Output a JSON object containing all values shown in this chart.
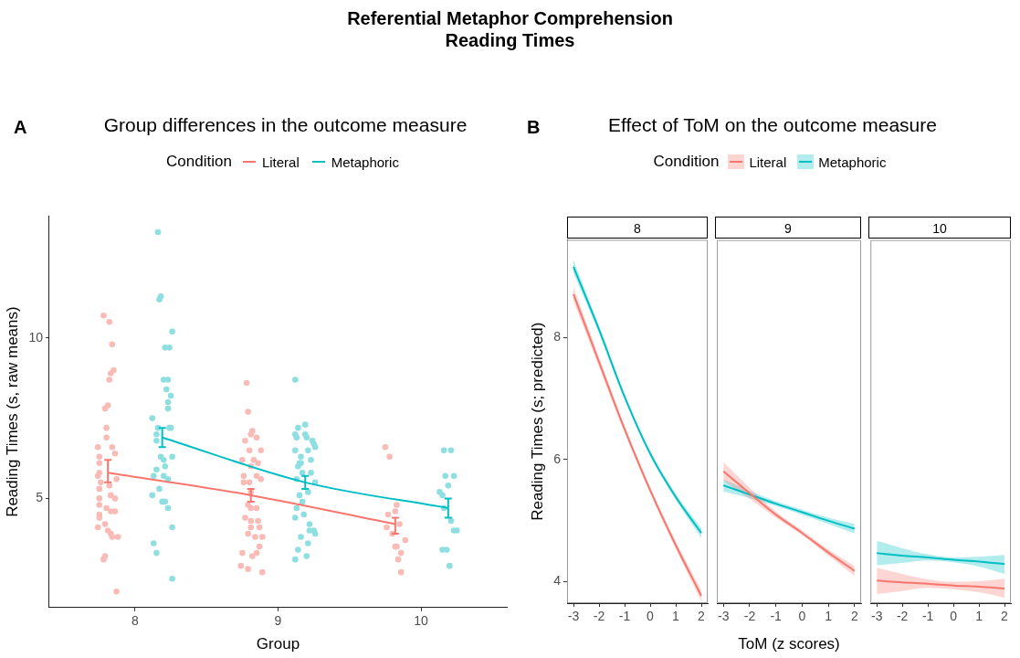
{
  "chart_data": [
    {
      "type": "other",
      "title": "Referential Metaphor Comprehension\nReading Times"
    },
    {
      "type": "scatter",
      "title": "Group differences in the outcome measure",
      "annotations": [
        "A"
      ],
      "xlabel": "Group",
      "ylabel": "Reading Times (s, raw means)",
      "legend_title": "Condition",
      "legend": "top",
      "grid": false,
      "marker": "circle",
      "xlim": [
        7.4,
        10.6
      ],
      "xticks": [
        8,
        9,
        10
      ],
      "ylim": [
        1.6,
        13.8
      ],
      "yticks": [
        5,
        10
      ],
      "series": [
        {
          "type": "scatter",
          "color": "#f9bbb6",
          "x": [
            7.78,
            7.82,
            7.84,
            7.85,
            7.83,
            7.82,
            7.81,
            7.79,
            7.8,
            7.8,
            7.74,
            7.84,
            7.86,
            7.75,
            7.75,
            7.75,
            7.74,
            7.87,
            7.76,
            7.82,
            7.75,
            7.83,
            7.75,
            7.86,
            7.75,
            7.8,
            7.86,
            7.83,
            7.75,
            7.75,
            7.79,
            7.74,
            7.81,
            7.83,
            7.88,
            7.84,
            7.79,
            7.78,
            7.87,
            8.78,
            8.79,
            8.82,
            8.77,
            8.81,
            8.85,
            8.8,
            8.88,
            8.75,
            8.83,
            8.86,
            8.81,
            8.76,
            8.85,
            8.88,
            8.76,
            8.8,
            8.81,
            8.79,
            8.81,
            8.85,
            8.77,
            8.81,
            8.86,
            8.81,
            8.87,
            8.79,
            8.84,
            8.89,
            8.87,
            8.85,
            8.75,
            8.82,
            8.74,
            8.79,
            8.89,
            9.75,
            9.78,
            9.77,
            9.83,
            9.82,
            9.85,
            9.76,
            9.8,
            9.89,
            9.82,
            9.83,
            9.86,
            9.84,
            9.86
          ],
          "values": [
            10.7,
            10.5,
            9.8,
            9.0,
            8.9,
            8.7,
            7.9,
            7.8,
            7.2,
            6.9,
            6.6,
            6.6,
            6.4,
            6.3,
            6.1,
            5.8,
            5.7,
            5.6,
            5.5,
            5.4,
            5.3,
            5.1,
            5.0,
            5.0,
            4.8,
            4.7,
            4.6,
            4.6,
            4.5,
            4.4,
            4.2,
            4.1,
            4.0,
            3.9,
            3.8,
            3.8,
            3.2,
            3.1,
            2.1,
            8.6,
            7.7,
            7.1,
            6.8,
            7.0,
            6.9,
            6.5,
            6.5,
            6.2,
            6.2,
            6.1,
            6.0,
            5.7,
            5.7,
            5.6,
            5.5,
            5.5,
            5.2,
            4.8,
            4.7,
            4.7,
            4.4,
            4.3,
            4.3,
            4.1,
            4.1,
            3.9,
            3.8,
            3.8,
            3.5,
            3.3,
            3.3,
            3.2,
            2.9,
            2.8,
            2.7,
            6.6,
            6.3,
            4.5,
            4.8,
            4.6,
            4.2,
            4.1,
            3.9,
            3.7,
            3.5,
            3.5,
            3.3,
            3.1,
            2.7
          ]
        },
        {
          "type": "scatter",
          "color": "#8fdfe1",
          "x": [
            8.16,
            8.18,
            8.17,
            8.26,
            8.21,
            8.24,
            8.2,
            8.23,
            8.22,
            8.25,
            8.23,
            8.23,
            8.12,
            8.16,
            8.24,
            8.25,
            8.15,
            8.15,
            8.18,
            8.2,
            8.26,
            8.15,
            8.21,
            8.13,
            8.2,
            8.23,
            8.17,
            8.12,
            8.19,
            8.21,
            8.23,
            8.26,
            8.13,
            8.15,
            8.26,
            9.12,
            9.19,
            9.14,
            9.12,
            9.19,
            9.13,
            9.2,
            9.24,
            9.25,
            9.26,
            9.21,
            9.12,
            9.16,
            9.23,
            9.16,
            9.14,
            9.15,
            9.17,
            9.23,
            9.13,
            9.26,
            9.21,
            9.15,
            9.17,
            9.13,
            9.18,
            9.12,
            9.22,
            9.22,
            9.25,
            9.26,
            9.16,
            9.21,
            9.14,
            9.2,
            9.12,
            10.16,
            10.21,
            10.17,
            10.23,
            10.19,
            10.13,
            10.15,
            10.16,
            10.21,
            10.25,
            10.23,
            10.15,
            10.18,
            10.2
          ],
          "values": [
            13.3,
            11.3,
            11.2,
            10.2,
            9.7,
            9.7,
            8.7,
            8.7,
            8.4,
            8.2,
            8.0,
            7.8,
            7.5,
            7.2,
            7.2,
            7.2,
            7.0,
            6.8,
            6.3,
            6.2,
            6.3,
            5.9,
            6.0,
            5.7,
            5.7,
            5.6,
            5.3,
            5.1,
            4.9,
            4.9,
            4.7,
            4.1,
            3.6,
            3.3,
            2.5,
            8.7,
            7.3,
            7.2,
            7.0,
            7.0,
            6.9,
            6.9,
            6.8,
            6.7,
            6.6,
            6.5,
            6.5,
            6.3,
            6.2,
            6.1,
            6.0,
            6.1,
            5.8,
            5.8,
            5.6,
            5.5,
            5.2,
            5.1,
            4.9,
            4.7,
            4.5,
            4.4,
            4.2,
            4.0,
            4.0,
            3.9,
            3.8,
            3.6,
            3.4,
            3.2,
            3.1,
            6.5,
            6.5,
            5.7,
            5.7,
            5.4,
            5.2,
            5.1,
            4.7,
            4.3,
            4.0,
            4.0,
            3.4,
            3.4,
            2.9
          ]
        },
        {
          "type": "line",
          "name": "Literal",
          "color": "#f8766d",
          "marker": "none",
          "x": [
            7.81,
            8.81,
            9.82
          ],
          "values": [
            5.8,
            5.1,
            4.2
          ],
          "errors": [
            [
              5.5,
              6.2
            ],
            [
              4.9,
              5.3
            ],
            [
              3.9,
              4.4
            ]
          ]
        },
        {
          "type": "line",
          "name": "Metaphoric",
          "color": "#00bfc4",
          "marker": "none",
          "x": [
            8.19,
            9.19,
            10.19
          ],
          "values": [
            6.9,
            5.5,
            4.7
          ],
          "errors": [
            [
              6.6,
              7.2
            ],
            [
              5.3,
              5.7
            ],
            [
              4.4,
              5.0
            ]
          ]
        }
      ]
    },
    {
      "type": "line",
      "title": "Effect of ToM on the outcome measure",
      "subtitle": "8",
      "annotations": [
        "B"
      ],
      "ylabel": "Reading Times (s; predicted)",
      "legend_title": "Condition",
      "legend": "top",
      "grid": false,
      "marker": "none",
      "x": [
        -3,
        -2,
        -1,
        0,
        1,
        2
      ],
      "xlim": [
        -3.25,
        2.25
      ],
      "xticks": [
        -3,
        -2,
        -1,
        0,
        1,
        2
      ],
      "ylim": [
        3.65,
        9.6
      ],
      "yticks": [
        4,
        6,
        8
      ],
      "series": [
        {
          "name": "Literal",
          "color": "#f8766d",
          "values": [
            8.71,
            7.6,
            6.5,
            5.5,
            4.6,
            3.77
          ],
          "lower": [
            8.6,
            7.52,
            6.44,
            5.45,
            4.54,
            3.68
          ],
          "upper": [
            8.82,
            7.68,
            6.56,
            5.55,
            4.66,
            3.86
          ]
        },
        {
          "name": "Metaphoric",
          "color": "#00bfc4",
          "values": [
            9.16,
            8.13,
            7.03,
            6.1,
            5.39,
            4.8
          ],
          "lower": [
            9.06,
            8.07,
            6.99,
            6.06,
            5.34,
            4.72
          ],
          "upper": [
            9.26,
            8.19,
            7.07,
            6.14,
            5.44,
            4.88
          ]
        }
      ]
    },
    {
      "type": "line",
      "subtitle": "9",
      "xlabel": "ToM (z scores)",
      "tick_labels": "x",
      "grid": false,
      "marker": "none",
      "x": [
        -3,
        -2,
        -1,
        0,
        1,
        2
      ],
      "xlim": [
        -3.25,
        2.25
      ],
      "xticks": [
        -3,
        -2,
        -1,
        0,
        1,
        2
      ],
      "ylim": [
        3.65,
        9.6
      ],
      "series": [
        {
          "color": "#f8766d",
          "values": [
            5.81,
            5.45,
            5.1,
            4.8,
            4.48,
            4.18
          ],
          "lower": [
            5.66,
            5.36,
            5.05,
            4.76,
            4.43,
            4.1
          ],
          "upper": [
            5.96,
            5.54,
            5.15,
            4.84,
            4.53,
            4.26
          ]
        },
        {
          "color": "#00bfc4",
          "values": [
            5.58,
            5.43,
            5.28,
            5.14,
            5.0,
            4.87
          ],
          "lower": [
            5.48,
            5.37,
            5.24,
            5.1,
            4.95,
            4.79
          ],
          "upper": [
            5.68,
            5.49,
            5.32,
            5.18,
            5.05,
            4.95
          ]
        }
      ]
    },
    {
      "type": "line",
      "subtitle": "10",
      "tick_labels": "x",
      "grid": false,
      "marker": "none",
      "x": [
        -3,
        -2,
        -1,
        0,
        1,
        2
      ],
      "xlim": [
        -3.25,
        2.25
      ],
      "xticks": [
        -3,
        -2,
        -1,
        0,
        1,
        2
      ],
      "ylim": [
        3.65,
        9.6
      ],
      "series": [
        {
          "color": "#f8766d",
          "values": [
            4.02,
            3.99,
            3.97,
            3.94,
            3.92,
            3.89
          ],
          "lower": [
            3.8,
            3.85,
            3.9,
            3.88,
            3.83,
            3.74
          ],
          "upper": [
            4.23,
            4.13,
            4.04,
            4.0,
            4.01,
            4.05
          ]
        },
        {
          "color": "#00bfc4",
          "values": [
            4.47,
            4.43,
            4.4,
            4.36,
            4.33,
            4.29
          ],
          "lower": [
            4.27,
            4.31,
            4.35,
            4.32,
            4.25,
            4.13
          ],
          "upper": [
            4.67,
            4.55,
            4.45,
            4.4,
            4.41,
            4.44
          ]
        }
      ]
    }
  ]
}
